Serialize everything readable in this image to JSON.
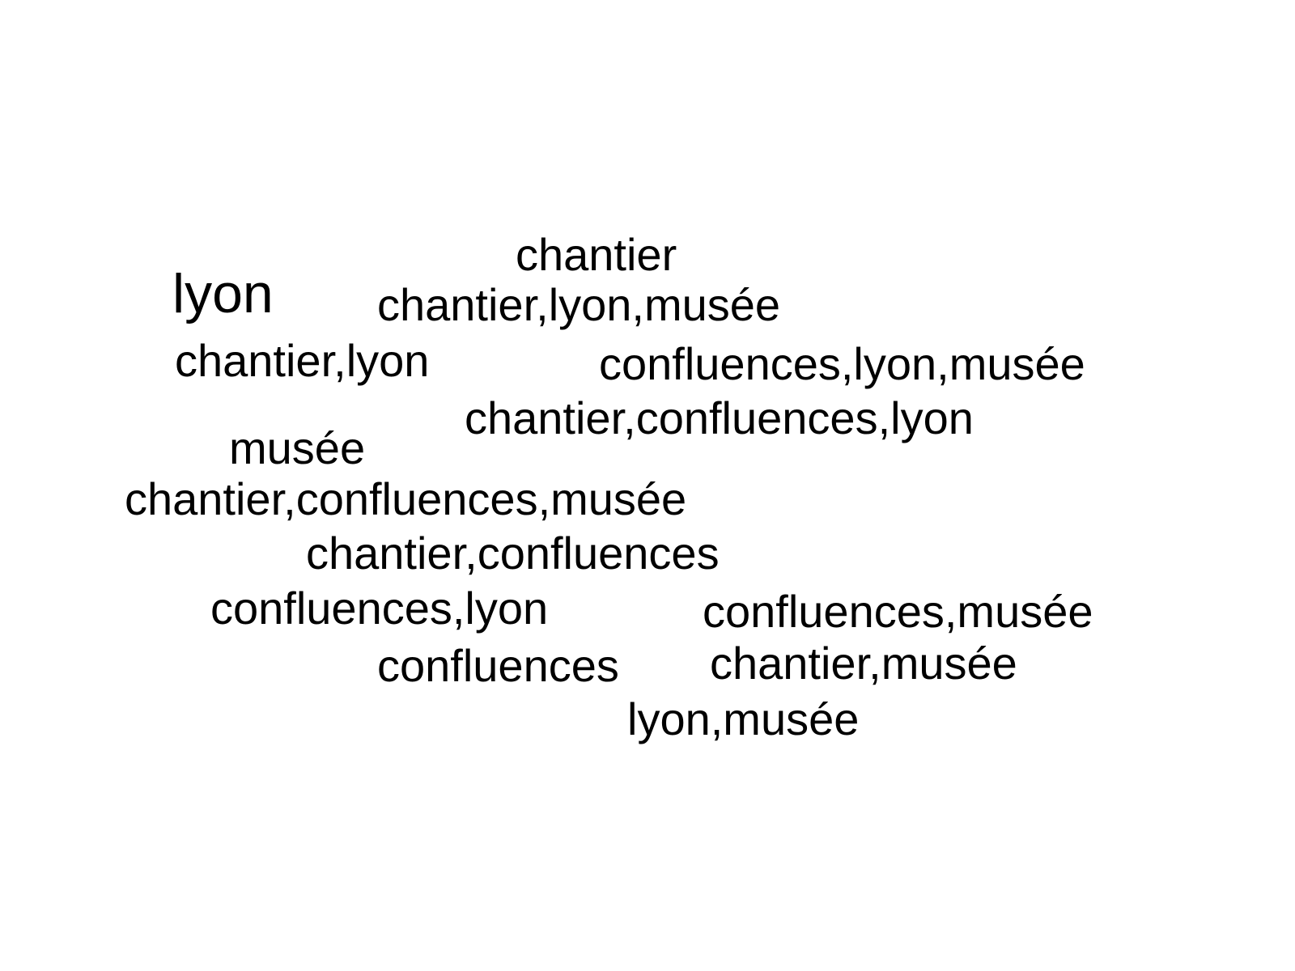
{
  "words": [
    {
      "text": "chantier"
    },
    {
      "text": "lyon"
    },
    {
      "text": "chantier,lyon,musée"
    },
    {
      "text": "chantier,lyon"
    },
    {
      "text": "confluences,lyon,musée"
    },
    {
      "text": "chantier,confluences,lyon"
    },
    {
      "text": "musée"
    },
    {
      "text": "chantier,confluences,musée"
    },
    {
      "text": "chantier,confluences"
    },
    {
      "text": "confluences,lyon"
    },
    {
      "text": "confluences,musée"
    },
    {
      "text": "confluences"
    },
    {
      "text": "chantier,musée"
    },
    {
      "text": "lyon,musée"
    }
  ],
  "colors": {
    "background": "#ffffff",
    "text": "#000000"
  }
}
